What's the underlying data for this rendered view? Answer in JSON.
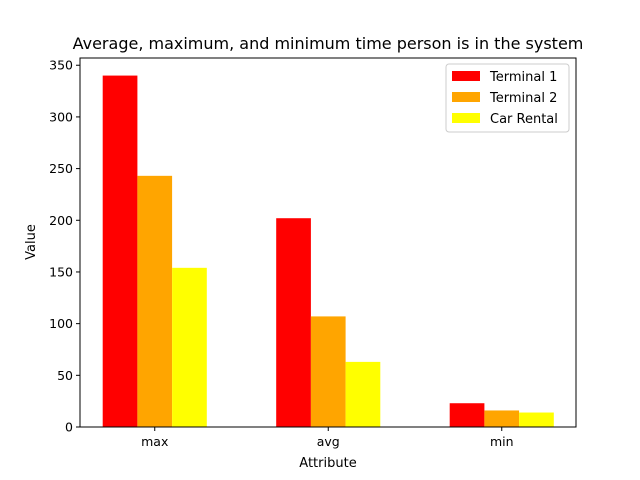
{
  "chart_data": {
    "type": "bar",
    "title": "Average, maximum, and minimum time person is in the system",
    "xlabel": "Attribute",
    "ylabel": "Value",
    "categories": [
      "max",
      "avg",
      "min"
    ],
    "series": [
      {
        "name": "Terminal 1",
        "color": "#ff0000",
        "values": [
          340,
          202,
          23
        ]
      },
      {
        "name": "Terminal 2",
        "color": "#ffa500",
        "values": [
          243,
          107,
          16
        ]
      },
      {
        "name": "Car Rental",
        "color": "#ffff00",
        "values": [
          154,
          63,
          14
        ]
      }
    ],
    "ylim": [
      0,
      357
    ],
    "yticks": [
      0,
      50,
      100,
      150,
      200,
      250,
      300,
      350
    ],
    "grid": false,
    "legend_position": "top-right"
  }
}
